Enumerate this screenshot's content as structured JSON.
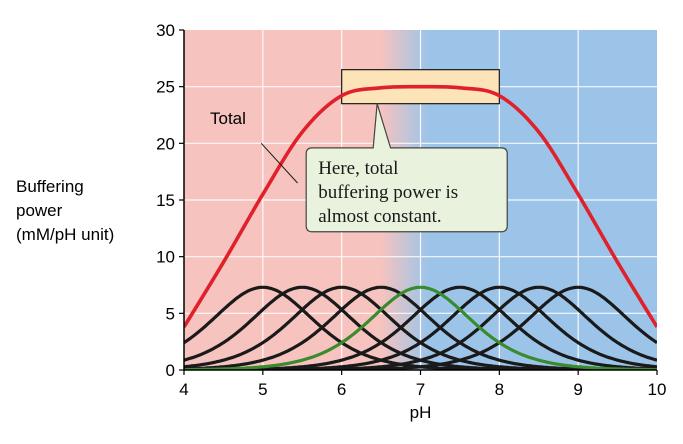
{
  "chart_data": {
    "type": "line",
    "title": "",
    "xlabel": "pH",
    "ylabel_lines": [
      "Buffering",
      "power",
      "(mM/pH unit)"
    ],
    "xlim": [
      4,
      10
    ],
    "ylim": [
      0,
      30
    ],
    "x_ticks": [
      4,
      5,
      6,
      7,
      8,
      9,
      10
    ],
    "y_ticks": [
      0,
      5,
      10,
      15,
      20,
      25,
      30
    ],
    "grid": true,
    "background": {
      "acid_color": "#f6c3bf",
      "base_color": "#9cc4e8",
      "transition_ph": [
        6.5,
        7.1
      ]
    },
    "series": [
      {
        "name": "Total",
        "color": "#e0202a",
        "x": [
          4.0,
          4.5,
          5.0,
          5.5,
          6.0,
          6.5,
          7.0,
          7.5,
          8.0,
          8.5,
          9.0,
          9.5,
          10.0
        ],
        "y": [
          3.8,
          9.5,
          15.5,
          21.0,
          24.2,
          24.9,
          25.0,
          24.9,
          24.2,
          21.0,
          15.5,
          9.5,
          3.8
        ]
      }
    ],
    "component_buffers": {
      "pKa": [
        5.0,
        5.5,
        6.0,
        6.5,
        7.0,
        7.5,
        8.0,
        8.5,
        9.0
      ],
      "peak": 7.3,
      "color": "#1a1a1a",
      "highlight_pKa": 7.0,
      "highlight_color": "#3a8a2e"
    },
    "annotations": {
      "total_label": "Total",
      "callout_lines": [
        "Here, total",
        "buffering power is",
        "almost constant."
      ],
      "callout_fill": "#e8f2dc",
      "callout_stroke": "#444444",
      "highlight_box": {
        "x_range": [
          6.0,
          8.0
        ],
        "y_range": [
          23.5,
          26.5
        ],
        "fill": "#fde3b8"
      }
    }
  }
}
